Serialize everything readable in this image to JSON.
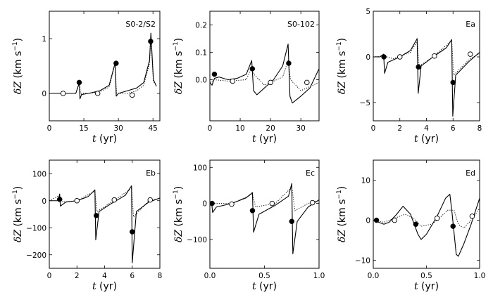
{
  "chart_data": [
    {
      "type": "line",
      "title": "S0-2/S2",
      "xlabel_var": "t",
      "xlabel_unit": "(yr)",
      "ylabel_var": "δZ",
      "ylabel_unit": "(km s",
      "xlim": [
        0,
        48
      ],
      "ylim": [
        -0.5,
        1.5
      ],
      "xticks": [
        0,
        15,
        30,
        45
      ],
      "yticks": [
        0,
        1
      ],
      "xtick_labels": [
        "0",
        "15",
        "30",
        "45"
      ],
      "ytick_labels": [
        "0",
        "1"
      ],
      "series": [
        {
          "name": "solid",
          "style": "solid",
          "points": [
            [
              0,
              0
            ],
            [
              11.5,
              0
            ],
            [
              13.05,
              0.2
            ],
            [
              13.3,
              -0.1
            ],
            [
              14,
              -0.02
            ],
            [
              17,
              0.0
            ],
            [
              22,
              0.05
            ],
            [
              26,
              0.15
            ],
            [
              28.6,
              0.56
            ],
            [
              29.05,
              -0.05
            ],
            [
              30,
              0.0
            ],
            [
              34,
              0.05
            ],
            [
              38,
              0.1
            ],
            [
              41,
              0.2
            ],
            [
              43.5,
              0.6
            ],
            [
              44.1,
              1.1
            ],
            [
              45.2,
              0.25
            ],
            [
              46.5,
              0.13
            ]
          ]
        },
        {
          "name": "dotted",
          "style": "dotted",
          "points": [
            [
              0,
              0
            ],
            [
              11.5,
              0
            ],
            [
              13.05,
              0.18
            ],
            [
              13.5,
              0.0
            ],
            [
              17,
              0.0
            ],
            [
              22,
              0.03
            ],
            [
              26,
              0.12
            ],
            [
              28.6,
              0.55
            ],
            [
              29.2,
              0.0
            ],
            [
              34,
              0.0
            ],
            [
              38,
              0.05
            ],
            [
              41,
              0.15
            ],
            [
              43.5,
              0.55
            ],
            [
              44.1,
              1.0
            ],
            [
              45.2,
              0.2
            ]
          ]
        }
      ],
      "filled_markers": [
        [
          13,
          0.2
        ],
        [
          29,
          0.55
        ],
        [
          44,
          0.95
        ]
      ],
      "open_markers": [
        [
          6,
          0
        ],
        [
          21,
          0
        ],
        [
          36,
          -0.03
        ]
      ]
    },
    {
      "type": "line",
      "title": "S0-102",
      "xlabel_var": "t",
      "xlabel_unit": "(yr)",
      "ylabel_var": "δZ",
      "ylabel_unit": "(km s",
      "xlim": [
        0,
        36
      ],
      "ylim": [
        -0.15,
        0.25
      ],
      "xticks": [
        0,
        10,
        20,
        30
      ],
      "yticks": [
        0.0,
        0.1,
        0.2
      ],
      "xtick_labels": [
        "0",
        "10",
        "20",
        "30"
      ],
      "ytick_labels": [
        "0.0",
        "0.1",
        "0.2"
      ],
      "series": [
        {
          "name": "solid",
          "style": "solid",
          "points": [
            [
              0,
              -0.01
            ],
            [
              0.7,
              -0.02
            ],
            [
              1.5,
              0.005
            ],
            [
              3,
              0.01
            ],
            [
              6,
              0.0
            ],
            [
              9,
              0.005
            ],
            [
              12,
              0.02
            ],
            [
              13.8,
              0.07
            ],
            [
              14.4,
              -0.04
            ],
            [
              15.5,
              -0.055
            ],
            [
              18,
              -0.03
            ],
            [
              21,
              0.0
            ],
            [
              24,
              0.05
            ],
            [
              25.8,
              0.13
            ],
            [
              26.4,
              -0.06
            ],
            [
              27.2,
              -0.085
            ],
            [
              30,
              -0.06
            ],
            [
              33,
              -0.03
            ],
            [
              36,
              0.04
            ]
          ]
        },
        {
          "name": "dotted",
          "style": "dotted",
          "points": [
            [
              0,
              -0.01
            ],
            [
              1.5,
              0.0
            ],
            [
              6,
              -0.005
            ],
            [
              12,
              0.0
            ],
            [
              13.8,
              0.045
            ],
            [
              14.5,
              0.02
            ],
            [
              18,
              -0.02
            ],
            [
              24,
              0.01
            ],
            [
              25.8,
              0.07
            ],
            [
              26.6,
              0.0
            ],
            [
              30,
              -0.04
            ],
            [
              36,
              -0.01
            ]
          ]
        }
      ],
      "filled_markers": [
        [
          1.5,
          0.02
        ],
        [
          14,
          0.04
        ],
        [
          26,
          0.06
        ]
      ],
      "open_markers": [
        [
          7.5,
          -0.005
        ],
        [
          20,
          -0.01
        ],
        [
          32,
          -0.01
        ]
      ]
    },
    {
      "type": "line",
      "title": "Ea",
      "xlabel_var": "t",
      "xlabel_unit": "(yr)",
      "ylabel_var": "δZ",
      "ylabel_unit": "(km s",
      "xlim": [
        0,
        8
      ],
      "ylim": [
        -7,
        5
      ],
      "xticks": [
        0,
        2,
        4,
        6,
        8
      ],
      "yticks": [
        -5,
        0,
        5
      ],
      "xtick_labels": [
        "0",
        "2",
        "4",
        "6",
        "8"
      ],
      "ytick_labels": [
        "−5",
        "0",
        "5"
      ],
      "series": [
        {
          "name": "solid",
          "style": "solid",
          "points": [
            [
              0,
              0
            ],
            [
              0.5,
              0
            ],
            [
              0.78,
              0.3
            ],
            [
              0.85,
              -1.8
            ],
            [
              1.1,
              -0.6
            ],
            [
              2,
              0
            ],
            [
              2.8,
              0.7
            ],
            [
              3.3,
              2.0
            ],
            [
              3.38,
              -4.0
            ],
            [
              3.6,
              -1.0
            ],
            [
              4.5,
              0.0
            ],
            [
              5.5,
              1.0
            ],
            [
              5.9,
              1.9
            ],
            [
              5.98,
              -6.5
            ],
            [
              6.2,
              -2.0
            ],
            [
              7.2,
              -0.5
            ],
            [
              8,
              0.5
            ]
          ]
        },
        {
          "name": "dotted",
          "style": "dotted",
          "points": [
            [
              0,
              0
            ],
            [
              0.8,
              0.1
            ],
            [
              1.5,
              -0.2
            ],
            [
              2.8,
              0.5
            ],
            [
              3.3,
              1.7
            ],
            [
              3.45,
              -1.0
            ],
            [
              4.5,
              0.0
            ],
            [
              5.9,
              1.8
            ],
            [
              6.05,
              -2.0
            ],
            [
              7.2,
              -0.3
            ],
            [
              8,
              0.4
            ]
          ]
        }
      ],
      "filled_markers": [
        [
          0.8,
          0.0
        ],
        [
          3.4,
          -1.1
        ],
        [
          6.0,
          -2.8
        ]
      ],
      "open_markers": [
        [
          2.0,
          0.0
        ],
        [
          4.6,
          0.1
        ],
        [
          7.3,
          0.3
        ]
      ]
    },
    {
      "type": "line",
      "title": "Eb",
      "xlabel_var": "t",
      "xlabel_unit": "(yr)",
      "ylabel_var": "δZ",
      "ylabel_unit": "(km s",
      "xlim": [
        0,
        8
      ],
      "ylim": [
        -250,
        150
      ],
      "xticks": [
        0,
        2,
        4,
        6,
        8
      ],
      "yticks": [
        -200,
        -100,
        0,
        100
      ],
      "xtick_labels": [
        "0",
        "2",
        "4",
        "6",
        "8"
      ],
      "ytick_labels": [
        "−200",
        "−100",
        "0",
        "100"
      ],
      "series": [
        {
          "name": "solid",
          "style": "solid",
          "points": [
            [
              0,
              0
            ],
            [
              0.65,
              0
            ],
            [
              0.75,
              25
            ],
            [
              0.8,
              -20
            ],
            [
              1.2,
              -5
            ],
            [
              2,
              0
            ],
            [
              2.8,
              15
            ],
            [
              3.3,
              40
            ],
            [
              3.36,
              -145
            ],
            [
              3.6,
              -40
            ],
            [
              4.5,
              -10
            ],
            [
              5.5,
              20
            ],
            [
              5.95,
              55
            ],
            [
              6.0,
              -230
            ],
            [
              6.3,
              -40
            ],
            [
              7.2,
              -5
            ],
            [
              8,
              10
            ]
          ]
        },
        {
          "name": "dotted",
          "style": "dotted",
          "points": [
            [
              0,
              0
            ],
            [
              0.75,
              20
            ],
            [
              1.0,
              -5
            ],
            [
              2,
              0
            ],
            [
              3.3,
              35
            ],
            [
              3.45,
              -40
            ],
            [
              4.5,
              -5
            ],
            [
              5.95,
              45
            ],
            [
              6.1,
              -60
            ],
            [
              7.2,
              0
            ],
            [
              8,
              8
            ]
          ]
        }
      ],
      "filled_markers": [
        [
          0.75,
          5
        ],
        [
          3.4,
          -55
        ],
        [
          6.0,
          -115
        ]
      ],
      "open_markers": [
        [
          2.0,
          0
        ],
        [
          4.7,
          3
        ],
        [
          7.3,
          3
        ]
      ]
    },
    {
      "type": "line",
      "title": "Ec",
      "xlabel_var": "t",
      "xlabel_unit": "(yr)",
      "ylabel_var": "δZ",
      "ylabel_unit": "(km s",
      "xlim": [
        0,
        1
      ],
      "ylim": [
        -180,
        120
      ],
      "xticks": [
        0,
        0.5,
        1
      ],
      "yticks": [
        -100,
        0,
        100
      ],
      "xtick_labels": [
        "0.0",
        "0.5",
        "1.0"
      ],
      "ytick_labels": [
        "−100",
        "0",
        "100"
      ],
      "series": [
        {
          "name": "solid",
          "style": "solid",
          "points": [
            [
              0,
              0
            ],
            [
              0.015,
              5
            ],
            [
              0.025,
              -25
            ],
            [
              0.06,
              -10
            ],
            [
              0.2,
              0
            ],
            [
              0.33,
              15
            ],
            [
              0.39,
              30
            ],
            [
              0.4,
              -80
            ],
            [
              0.45,
              -30
            ],
            [
              0.6,
              -5
            ],
            [
              0.72,
              20
            ],
            [
              0.75,
              55
            ],
            [
              0.76,
              -140
            ],
            [
              0.8,
              -50
            ],
            [
              0.9,
              -10
            ],
            [
              1.0,
              10
            ]
          ]
        },
        {
          "name": "dotted",
          "style": "dotted",
          "points": [
            [
              0,
              0
            ],
            [
              0.02,
              0
            ],
            [
              0.2,
              0
            ],
            [
              0.39,
              25
            ],
            [
              0.42,
              -10
            ],
            [
              0.6,
              0
            ],
            [
              0.75,
              45
            ],
            [
              0.78,
              -20
            ],
            [
              0.9,
              0
            ],
            [
              1.0,
              8
            ]
          ]
        }
      ],
      "filled_markers": [
        [
          0.02,
          0
        ],
        [
          0.39,
          -20
        ],
        [
          0.75,
          -50
        ]
      ],
      "open_markers": [
        [
          0.2,
          -2
        ],
        [
          0.57,
          0
        ],
        [
          0.94,
          2
        ]
      ]
    },
    {
      "type": "line",
      "title": "Ed",
      "xlabel_var": "t",
      "xlabel_unit": "(yr)",
      "ylabel_var": "δZ",
      "ylabel_unit": "(km s",
      "xlim": [
        0,
        1
      ],
      "ylim": [
        -12,
        15
      ],
      "xticks": [
        0,
        0.5,
        1
      ],
      "yticks": [
        -10,
        0,
        10
      ],
      "xtick_labels": [
        "0.0",
        "0.5",
        "1.0"
      ],
      "ytick_labels": [
        "−10",
        "0",
        "10"
      ],
      "series": [
        {
          "name": "solid",
          "style": "solid",
          "points": [
            [
              0,
              0
            ],
            [
              0.05,
              -0.5
            ],
            [
              0.1,
              -1.0
            ],
            [
              0.15,
              -0.5
            ],
            [
              0.22,
              1.5
            ],
            [
              0.28,
              3.5
            ],
            [
              0.35,
              1.5
            ],
            [
              0.42,
              -3.5
            ],
            [
              0.45,
              -4.8
            ],
            [
              0.5,
              -3.5
            ],
            [
              0.6,
              1.0
            ],
            [
              0.68,
              5.5
            ],
            [
              0.72,
              6.5
            ],
            [
              0.74,
              2.0
            ],
            [
              0.78,
              -8.5
            ],
            [
              0.8,
              -9.0
            ],
            [
              0.85,
              -6.0
            ],
            [
              0.92,
              -1.0
            ],
            [
              1.0,
              5.5
            ]
          ]
        },
        {
          "name": "dotted",
          "style": "dotted",
          "points": [
            [
              0,
              0
            ],
            [
              0.1,
              -0.5
            ],
            [
              0.2,
              0.5
            ],
            [
              0.3,
              1.5
            ],
            [
              0.38,
              0.5
            ],
            [
              0.45,
              -1.5
            ],
            [
              0.55,
              -1.0
            ],
            [
              0.62,
              0.5
            ],
            [
              0.7,
              2.5
            ],
            [
              0.76,
              2.5
            ],
            [
              0.8,
              -1.0
            ],
            [
              0.85,
              -2.0
            ],
            [
              0.92,
              0.0
            ],
            [
              1.0,
              3.0
            ]
          ]
        }
      ],
      "filled_markers": [
        [
          0.03,
          0
        ],
        [
          0.4,
          -1
        ],
        [
          0.75,
          -1.5
        ]
      ],
      "open_markers": [
        [
          0.2,
          0
        ],
        [
          0.6,
          0.5
        ],
        [
          0.93,
          1
        ]
      ]
    }
  ]
}
